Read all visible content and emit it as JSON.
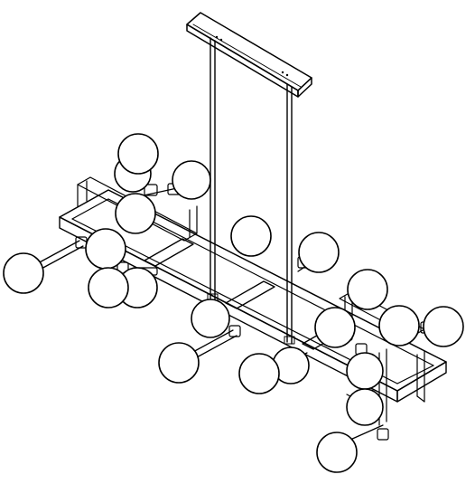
{
  "figure": {
    "subject": "line drawing",
    "line_color": "#000000",
    "background_color": "#ffffff"
  }
}
